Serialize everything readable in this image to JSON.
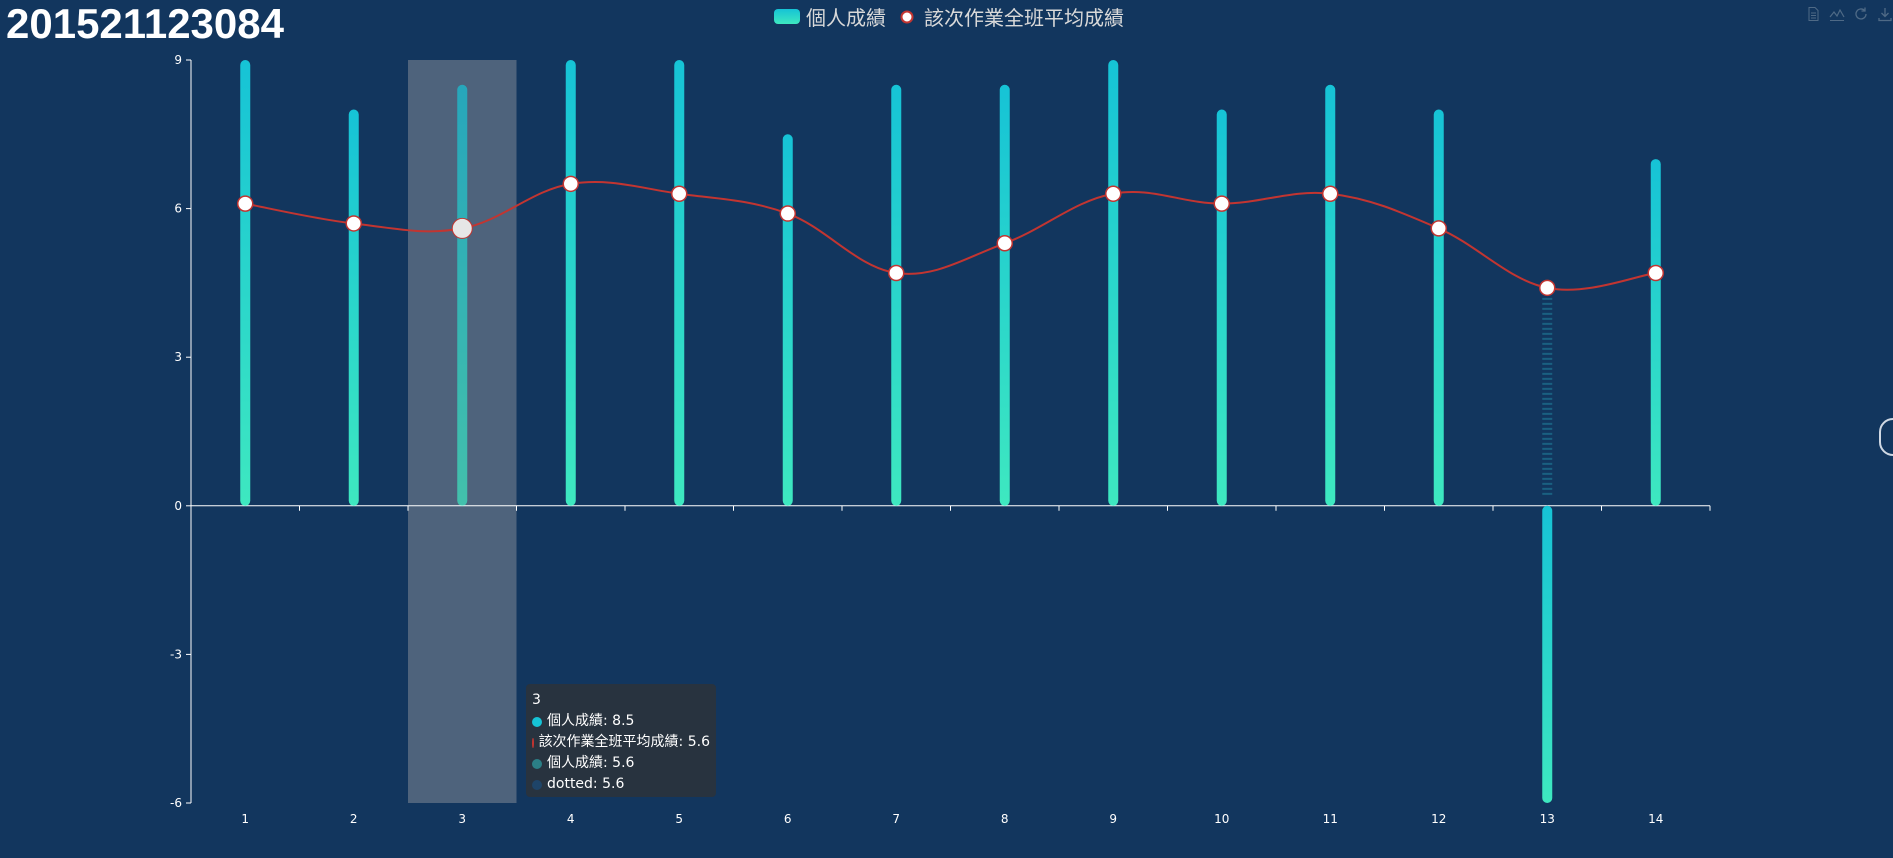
{
  "title": "201521123084",
  "legend": {
    "bar_label": "個人成績",
    "line_label": "該次作業全班平均成績"
  },
  "toolbox": [
    "data-view-icon",
    "line-chart-icon",
    "restore-icon",
    "save-image-icon"
  ],
  "colors": {
    "background": "#12365e",
    "bar_top": "#16c3d6",
    "bar_bottom": "#3ee8c0",
    "line": "#c23531",
    "highlight": "#55687f"
  },
  "tooltip": {
    "header": "3",
    "rows": [
      {
        "text": "個人成績: 8.5",
        "color": "#16c3d6"
      },
      {
        "text": "該次作業全班平均成績: 5.6",
        "color": "#c23531"
      },
      {
        "text": "個人成績: 5.6",
        "color": "#2b7f86"
      },
      {
        "text": "dotted: 5.6",
        "color": "#1e4468"
      }
    ]
  },
  "chart_data": {
    "type": "bar",
    "categories": [
      "1",
      "2",
      "3",
      "4",
      "5",
      "6",
      "7",
      "8",
      "9",
      "10",
      "11",
      "12",
      "13",
      "14"
    ],
    "ylim": [
      -6,
      9
    ],
    "yticks": [
      -6,
      -3,
      0,
      3,
      6,
      9
    ],
    "highlighted_category": "3",
    "series": [
      {
        "name": "個人成績",
        "type": "bar",
        "values": [
          9,
          8,
          8.5,
          9,
          9,
          7.5,
          8.5,
          8.5,
          9,
          8,
          8.5,
          8,
          -6,
          7
        ]
      },
      {
        "name": "該次作業全班平均成績",
        "type": "line",
        "values": [
          6.1,
          5.7,
          5.6,
          6.5,
          6.3,
          5.9,
          4.7,
          5.3,
          6.3,
          6.1,
          6.3,
          5.6,
          4.4,
          4.7
        ]
      },
      {
        "name": "dotted",
        "type": "pictorial-dotted",
        "values": [
          6.1,
          5.7,
          5.6,
          6.5,
          6.3,
          5.9,
          4.7,
          5.3,
          6.3,
          6.1,
          6.3,
          5.6,
          4.4,
          4.7
        ]
      }
    ]
  }
}
